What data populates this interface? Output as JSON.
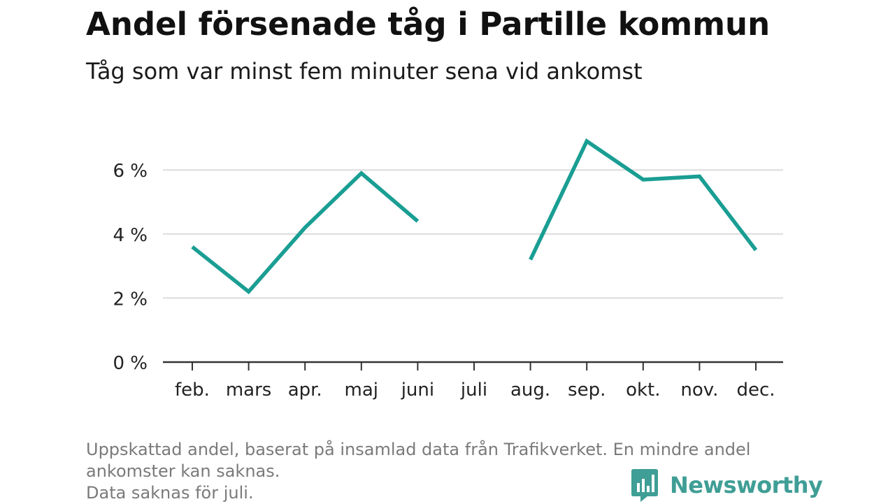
{
  "title": "Andel försenade tåg i Partille kommun",
  "subtitle": "Tåg som var minst fem minuter sena vid ankomst",
  "footnote": {
    "line1": "Uppskattad andel, baserat på insamlad data från Trafikverket. En mindre andel",
    "line2": "ankomster kan saknas.",
    "line3": "Data saknas för juli."
  },
  "logo": {
    "text": "Newsworthy",
    "icon": "chart-bubble-icon",
    "color": "#3f9e95"
  },
  "chart_data": {
    "type": "line",
    "categories": [
      "feb.",
      "mars",
      "apr.",
      "maj",
      "juni",
      "juli",
      "aug.",
      "sep.",
      "okt.",
      "nov.",
      "dec."
    ],
    "series": [
      {
        "values": [
          3.6,
          2.2,
          4.2,
          5.9,
          4.4,
          null,
          3.2,
          6.9,
          5.7,
          5.8,
          3.5
        ],
        "color": "#1a9e93"
      }
    ],
    "yticks": [
      "0 %",
      "2 %",
      "4 %",
      "6 %"
    ],
    "ytick_values": [
      0,
      2,
      4,
      6
    ],
    "ylim": [
      0,
      7.2
    ],
    "grid": true,
    "legend": "none"
  }
}
